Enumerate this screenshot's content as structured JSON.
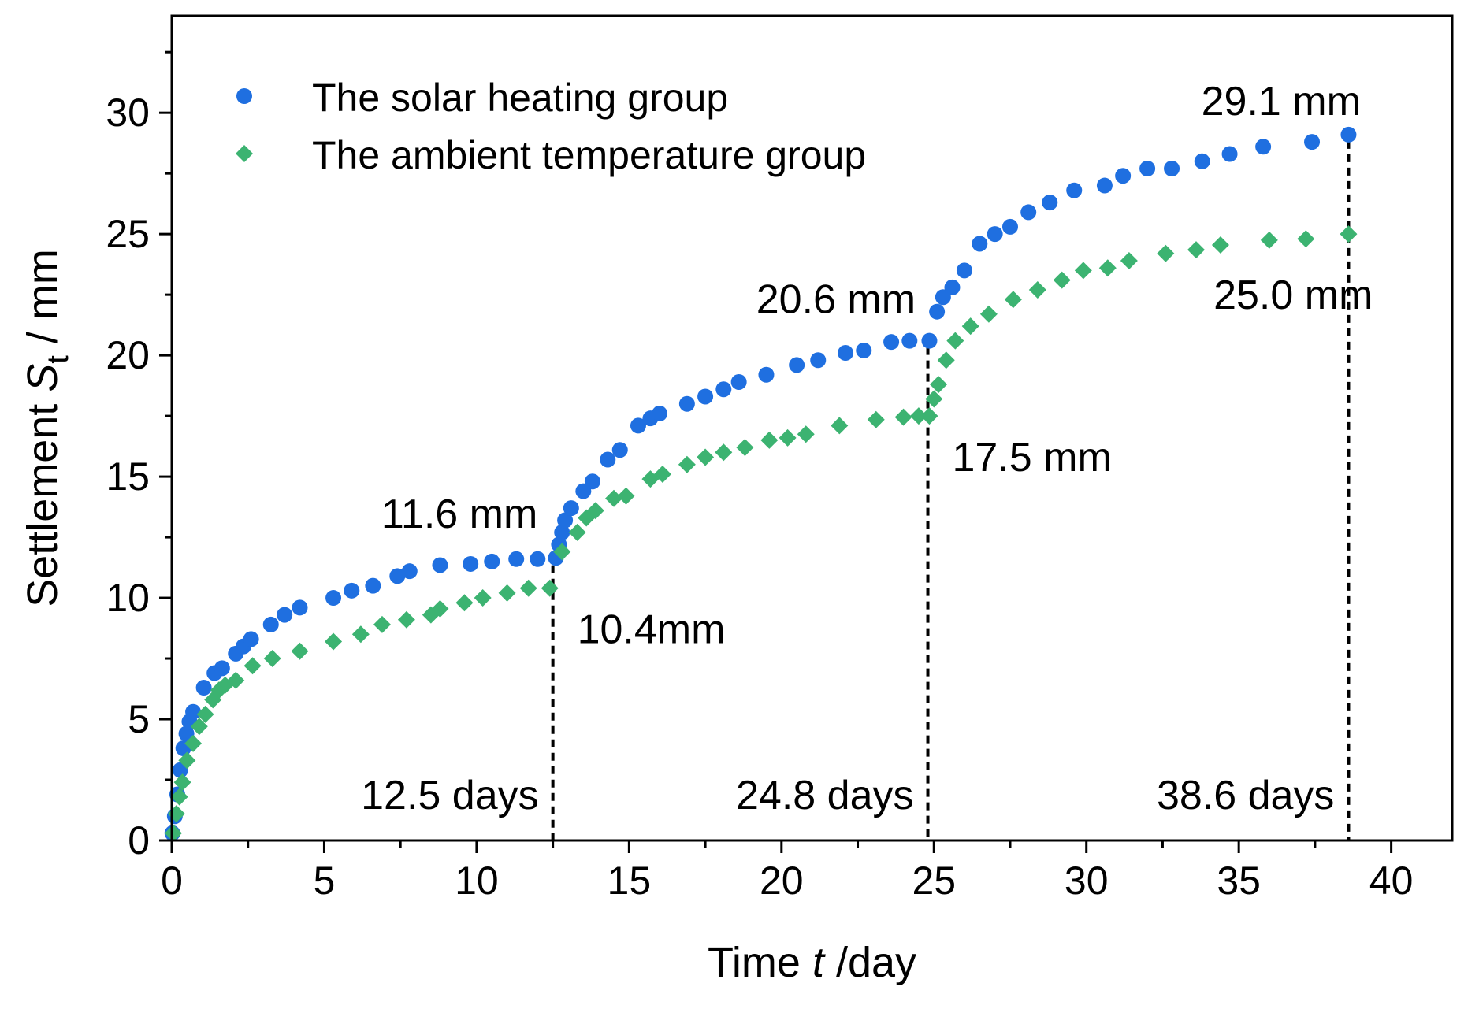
{
  "chart_data": {
    "type": "scatter",
    "xlabel": {
      "prefix": "Time ",
      "var": "t",
      "suffix": " /day"
    },
    "ylabel": {
      "prefix": "Settlement ",
      "var": "S",
      "sub": "t",
      "suffix": " / mm"
    },
    "xlim": [
      0,
      42
    ],
    "ylim": [
      0,
      34
    ],
    "x_ticks": [
      0,
      5,
      10,
      15,
      20,
      25,
      30,
      35,
      40
    ],
    "y_ticks": [
      0,
      5,
      10,
      15,
      20,
      25,
      30
    ],
    "x_tick_labels": [
      "0",
      "5",
      "10",
      "15",
      "20",
      "25",
      "30",
      "35",
      "40"
    ],
    "y_tick_labels": [
      "0",
      "5",
      "10",
      "15",
      "20",
      "25",
      "30"
    ],
    "legend_position": "top-left",
    "series": [
      {
        "name": "The solar heating group",
        "marker": "circle",
        "color": "#1f6fe0",
        "points": [
          [
            0.02,
            0.3
          ],
          [
            0.1,
            1.0
          ],
          [
            0.18,
            1.9
          ],
          [
            0.28,
            2.9
          ],
          [
            0.38,
            3.8
          ],
          [
            0.48,
            4.4
          ],
          [
            0.58,
            4.9
          ],
          [
            0.7,
            5.3
          ],
          [
            1.05,
            6.3
          ],
          [
            1.4,
            6.9
          ],
          [
            1.65,
            7.1
          ],
          [
            2.1,
            7.7
          ],
          [
            2.35,
            8.0
          ],
          [
            2.6,
            8.3
          ],
          [
            3.25,
            8.9
          ],
          [
            3.7,
            9.3
          ],
          [
            4.2,
            9.6
          ],
          [
            5.3,
            10.0
          ],
          [
            5.9,
            10.3
          ],
          [
            6.6,
            10.5
          ],
          [
            7.4,
            10.9
          ],
          [
            7.8,
            11.1
          ],
          [
            8.8,
            11.35
          ],
          [
            9.8,
            11.4
          ],
          [
            10.5,
            11.5
          ],
          [
            11.3,
            11.6
          ],
          [
            12.0,
            11.6
          ],
          [
            12.6,
            11.65
          ],
          [
            12.7,
            12.2
          ],
          [
            12.8,
            12.7
          ],
          [
            12.9,
            13.2
          ],
          [
            13.1,
            13.7
          ],
          [
            13.5,
            14.4
          ],
          [
            13.8,
            14.8
          ],
          [
            14.3,
            15.7
          ],
          [
            14.7,
            16.1
          ],
          [
            15.3,
            17.1
          ],
          [
            15.7,
            17.4
          ],
          [
            16.0,
            17.6
          ],
          [
            16.9,
            18.0
          ],
          [
            17.5,
            18.3
          ],
          [
            18.1,
            18.6
          ],
          [
            18.6,
            18.9
          ],
          [
            19.5,
            19.2
          ],
          [
            20.5,
            19.6
          ],
          [
            21.2,
            19.8
          ],
          [
            22.1,
            20.1
          ],
          [
            22.7,
            20.2
          ],
          [
            23.6,
            20.55
          ],
          [
            24.2,
            20.6
          ],
          [
            24.85,
            20.6
          ],
          [
            25.1,
            21.8
          ],
          [
            25.3,
            22.4
          ],
          [
            25.6,
            22.8
          ],
          [
            26.0,
            23.5
          ],
          [
            26.5,
            24.6
          ],
          [
            27.0,
            25.0
          ],
          [
            27.5,
            25.3
          ],
          [
            28.1,
            25.9
          ],
          [
            28.8,
            26.3
          ],
          [
            29.6,
            26.8
          ],
          [
            30.6,
            27.0
          ],
          [
            31.2,
            27.4
          ],
          [
            32.0,
            27.7
          ],
          [
            32.8,
            27.7
          ],
          [
            33.8,
            28.0
          ],
          [
            34.7,
            28.3
          ],
          [
            35.8,
            28.6
          ],
          [
            37.4,
            28.8
          ],
          [
            38.6,
            29.1
          ]
        ]
      },
      {
        "name": "The ambient temperature group",
        "marker": "diamond",
        "color": "#3cb371",
        "points": [
          [
            0.05,
            0.3
          ],
          [
            0.15,
            1.1
          ],
          [
            0.25,
            1.8
          ],
          [
            0.35,
            2.4
          ],
          [
            0.5,
            3.3
          ],
          [
            0.7,
            4.0
          ],
          [
            0.9,
            4.7
          ],
          [
            1.1,
            5.2
          ],
          [
            1.35,
            5.8
          ],
          [
            1.55,
            6.2
          ],
          [
            1.75,
            6.4
          ],
          [
            2.1,
            6.6
          ],
          [
            2.65,
            7.2
          ],
          [
            3.3,
            7.5
          ],
          [
            4.2,
            7.8
          ],
          [
            5.3,
            8.2
          ],
          [
            6.2,
            8.5
          ],
          [
            6.9,
            8.9
          ],
          [
            7.7,
            9.1
          ],
          [
            8.5,
            9.3
          ],
          [
            8.8,
            9.55
          ],
          [
            9.6,
            9.8
          ],
          [
            10.2,
            10.0
          ],
          [
            11.0,
            10.2
          ],
          [
            11.7,
            10.4
          ],
          [
            12.4,
            10.4
          ],
          [
            12.8,
            11.9
          ],
          [
            13.3,
            12.7
          ],
          [
            13.6,
            13.3
          ],
          [
            13.9,
            13.6
          ],
          [
            14.5,
            14.1
          ],
          [
            14.9,
            14.2
          ],
          [
            15.7,
            14.9
          ],
          [
            16.1,
            15.1
          ],
          [
            16.9,
            15.5
          ],
          [
            17.5,
            15.8
          ],
          [
            18.1,
            16.0
          ],
          [
            18.8,
            16.2
          ],
          [
            19.6,
            16.5
          ],
          [
            20.2,
            16.6
          ],
          [
            20.8,
            16.75
          ],
          [
            21.9,
            17.1
          ],
          [
            23.1,
            17.35
          ],
          [
            24.0,
            17.45
          ],
          [
            24.5,
            17.5
          ],
          [
            24.85,
            17.5
          ],
          [
            25.0,
            18.2
          ],
          [
            25.15,
            18.8
          ],
          [
            25.4,
            19.8
          ],
          [
            25.7,
            20.6
          ],
          [
            26.2,
            21.2
          ],
          [
            26.8,
            21.7
          ],
          [
            27.6,
            22.3
          ],
          [
            28.4,
            22.7
          ],
          [
            29.2,
            23.1
          ],
          [
            29.9,
            23.5
          ],
          [
            30.7,
            23.6
          ],
          [
            31.4,
            23.9
          ],
          [
            32.6,
            24.2
          ],
          [
            33.6,
            24.35
          ],
          [
            34.4,
            24.55
          ],
          [
            36.0,
            24.75
          ],
          [
            37.2,
            24.8
          ],
          [
            38.6,
            25.0
          ]
        ]
      }
    ],
    "reference_lines": [
      {
        "x": 12.5,
        "y": 11.6,
        "label": "12.5 days"
      },
      {
        "x": 24.8,
        "y": 20.6,
        "label": "24.8 days"
      },
      {
        "x": 38.6,
        "y": 29.1,
        "label": "38.6 days"
      }
    ],
    "annotations": [
      {
        "text": "11.6 mm",
        "x": 12.0,
        "y": 11.6,
        "anchor": "end",
        "dy": -40
      },
      {
        "text": "10.4mm",
        "x": 13.3,
        "y": 10.4,
        "anchor": "start",
        "dy": 70
      },
      {
        "text": "20.6 mm",
        "x": 24.4,
        "y": 20.6,
        "anchor": "end",
        "dy": -35
      },
      {
        "text": "17.5 mm",
        "x": 25.6,
        "y": 17.5,
        "anchor": "start",
        "dy": 70
      },
      {
        "text": "29.1 mm",
        "x": 39.0,
        "y": 29.1,
        "anchor": "end",
        "dy": -25
      },
      {
        "text": "25.0 mm",
        "x": 39.4,
        "y": 25.0,
        "anchor": "end",
        "dy": 95
      }
    ]
  }
}
